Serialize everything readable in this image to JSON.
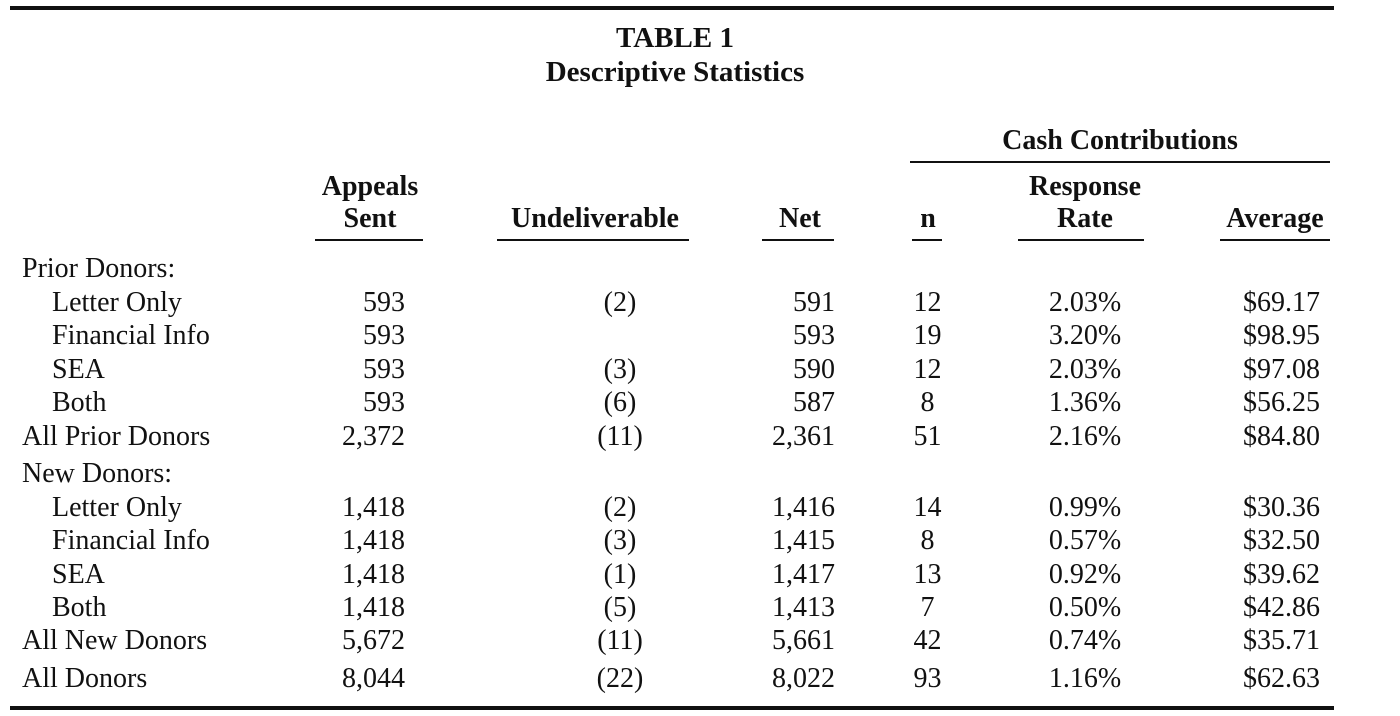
{
  "title": "TABLE 1",
  "subtitle": "Descriptive Statistics",
  "group_header": "Cash Contributions",
  "headers": {
    "appeals_line1": "Appeals",
    "appeals_line2": "Sent",
    "undeliverable": "Undeliverable",
    "net": "Net",
    "n": "n",
    "response_line1": "Response",
    "response_line2": "Rate",
    "average": "Average"
  },
  "rows": [
    {
      "label": "Prior Donors:",
      "indent": false,
      "section": true,
      "cells": [
        "",
        "",
        "",
        "",
        "",
        ""
      ]
    },
    {
      "label": "Letter Only",
      "indent": true,
      "cells": [
        "593",
        "(2)",
        "591",
        "12",
        "2.03%",
        "$69.17"
      ]
    },
    {
      "label": "Financial Info",
      "indent": true,
      "cells": [
        "593",
        "",
        "593",
        "19",
        "3.20%",
        "$98.95"
      ]
    },
    {
      "label": "SEA",
      "indent": true,
      "cells": [
        "593",
        "(3)",
        "590",
        "12",
        "2.03%",
        "$97.08"
      ]
    },
    {
      "label": "Both",
      "indent": true,
      "cells": [
        "593",
        "(6)",
        "587",
        "8",
        "1.36%",
        "$56.25"
      ]
    },
    {
      "label": "All Prior Donors",
      "indent": false,
      "cells": [
        "2,372",
        "(11)",
        "2,361",
        "51",
        "2.16%",
        "$84.80"
      ]
    },
    {
      "label": "New Donors:",
      "indent": false,
      "section": true,
      "cells": [
        "",
        "",
        "",
        "",
        "",
        ""
      ]
    },
    {
      "label": "Letter Only",
      "indent": true,
      "cells": [
        "1,418",
        "(2)",
        "1,416",
        "14",
        "0.99%",
        "$30.36"
      ]
    },
    {
      "label": "Financial Info",
      "indent": true,
      "cells": [
        "1,418",
        "(3)",
        "1,415",
        "8",
        "0.57%",
        "$32.50"
      ]
    },
    {
      "label": "SEA",
      "indent": true,
      "cells": [
        "1,418",
        "(1)",
        "1,417",
        "13",
        "0.92%",
        "$39.62"
      ]
    },
    {
      "label": "Both",
      "indent": true,
      "cells": [
        "1,418",
        "(5)",
        "1,413",
        "7",
        "0.50%",
        "$42.86"
      ]
    },
    {
      "label": "All New Donors",
      "indent": false,
      "cells": [
        "5,672",
        "(11)",
        "5,661",
        "42",
        "0.74%",
        "$35.71"
      ]
    },
    {
      "label": "All Donors",
      "indent": false,
      "cells": [
        "8,044",
        "(22)",
        "8,022",
        "93",
        "1.16%",
        "$62.63"
      ]
    }
  ]
}
